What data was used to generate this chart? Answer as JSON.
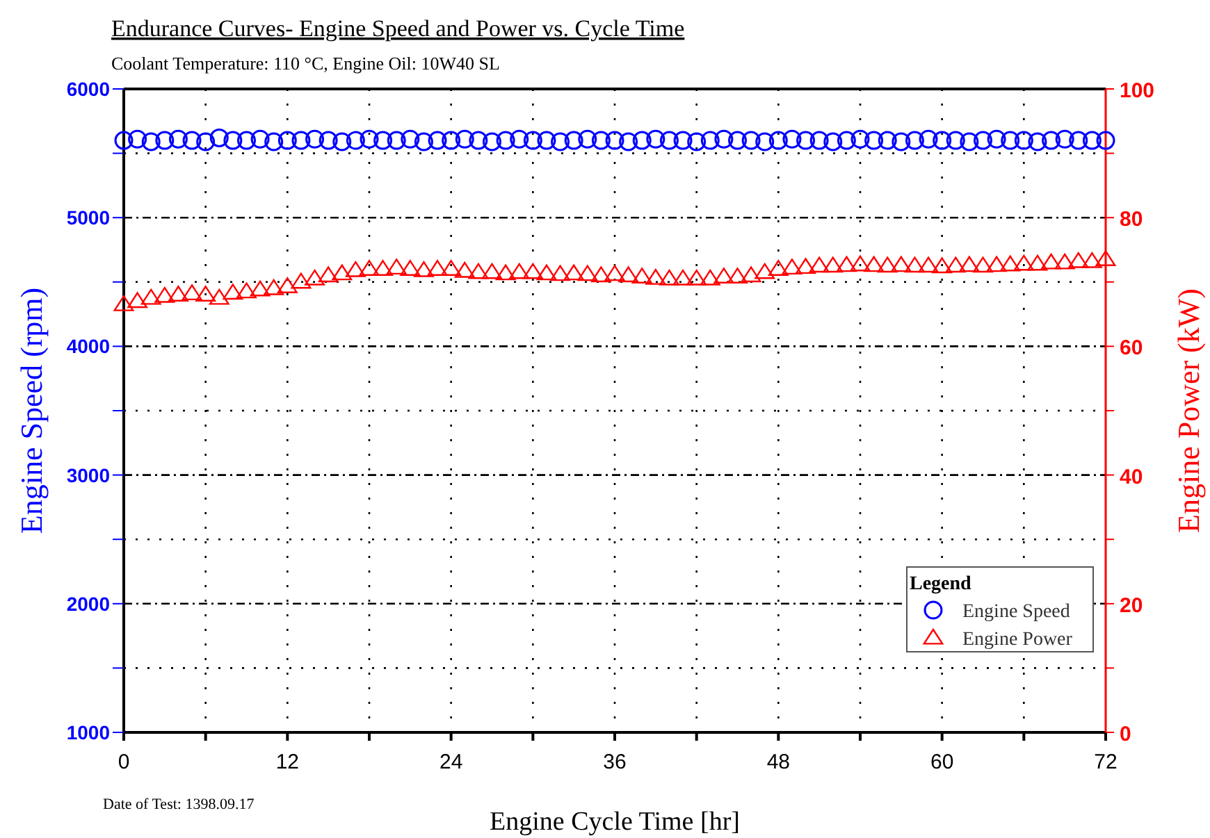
{
  "chart_data": {
    "type": "scatter",
    "title": "Endurance Curves- Engine Speed and Power vs. Cycle Time",
    "subtitle": "Coolant Temperature: 110 °C, Engine Oil: 10W40 SL",
    "xlabel": "Engine Cycle Time [hr]",
    "ylabel": "Engine Speed (rpm)",
    "y2label": "Engine Power (kW)",
    "legend_title": "Legend",
    "annotations": [
      "Date of Test: 1398.09.17"
    ],
    "x": [
      0,
      1,
      2,
      3,
      4,
      5,
      6,
      7,
      8,
      9,
      10,
      11,
      12,
      13,
      14,
      15,
      16,
      17,
      18,
      19,
      20,
      21,
      22,
      23,
      24,
      25,
      26,
      27,
      28,
      29,
      30,
      31,
      32,
      33,
      34,
      35,
      36,
      37,
      38,
      39,
      40,
      41,
      42,
      43,
      44,
      45,
      46,
      47,
      48,
      49,
      50,
      51,
      52,
      53,
      54,
      55,
      56,
      57,
      58,
      59,
      60,
      61,
      62,
      63,
      64,
      65,
      66,
      67,
      68,
      69,
      70,
      71,
      72
    ],
    "series": [
      {
        "name": "Engine Speed",
        "color": "#0000ff",
        "marker": "circle",
        "values": [
          5600,
          5610,
          5590,
          5600,
          5610,
          5600,
          5590,
          5620,
          5600,
          5600,
          5610,
          5590,
          5600,
          5600,
          5610,
          5600,
          5590,
          5600,
          5610,
          5600,
          5600,
          5610,
          5590,
          5600,
          5600,
          5610,
          5600,
          5590,
          5600,
          5610,
          5600,
          5600,
          5590,
          5600,
          5610,
          5600,
          5600,
          5590,
          5600,
          5610,
          5600,
          5600,
          5590,
          5600,
          5610,
          5600,
          5600,
          5590,
          5600,
          5610,
          5600,
          5600,
          5590,
          5600,
          5610,
          5600,
          5600,
          5590,
          5600,
          5610,
          5600,
          5600,
          5590,
          5600,
          5610,
          5600,
          5600,
          5590,
          5600,
          5610,
          5600,
          5600,
          5600
        ]
      },
      {
        "name": "Engine Power",
        "color": "#ff0000",
        "marker": "triangle",
        "axis": "y2",
        "values": [
          66.5,
          67,
          67.5,
          67.8,
          68,
          68.2,
          68,
          67.5,
          68.3,
          68.5,
          68.8,
          69,
          69.3,
          70,
          70.5,
          71,
          71.3,
          71.8,
          72,
          72,
          72.2,
          72,
          71.8,
          72,
          72,
          71.7,
          71.5,
          71.5,
          71.3,
          71.5,
          71.5,
          71.3,
          71.2,
          71.3,
          71.2,
          71,
          71.2,
          71,
          70.8,
          70.6,
          70.5,
          70.5,
          70.5,
          70.5,
          70.8,
          70.8,
          71,
          71.5,
          72,
          72.2,
          72.3,
          72.5,
          72.5,
          72.6,
          72.7,
          72.6,
          72.5,
          72.6,
          72.5,
          72.5,
          72.4,
          72.5,
          72.6,
          72.5,
          72.6,
          72.7,
          72.8,
          72.8,
          73,
          73,
          73.2,
          73.2,
          73.5
        ]
      }
    ],
    "xlim": [
      0,
      72
    ],
    "xticks": [
      0,
      {
        "value": 6,
        "label": null
      },
      12,
      {
        "value": 18,
        "label": null
      },
      24,
      {
        "value": 30,
        "label": null
      },
      36,
      {
        "value": 42,
        "label": null
      },
      48,
      {
        "value": 54,
        "label": null
      },
      60,
      {
        "value": 66,
        "label": null
      },
      72
    ],
    "ylim": [
      1000,
      6000
    ],
    "yticks": [
      1000,
      {
        "value": 1500,
        "label": null
      },
      2000,
      {
        "value": 2500,
        "label": null
      },
      3000,
      {
        "value": 3500,
        "label": null
      },
      4000,
      {
        "value": 4500,
        "label": null
      },
      5000,
      {
        "value": 5500,
        "label": null
      },
      6000
    ],
    "y2lim": [
      0,
      100
    ],
    "y2ticks": [
      0,
      {
        "value": 10,
        "label": null
      },
      20,
      {
        "value": 30,
        "label": null
      },
      40,
      {
        "value": 50,
        "label": null
      },
      60,
      {
        "value": 70,
        "label": null
      },
      80,
      {
        "value": 90,
        "label": null
      },
      100
    ],
    "grid": true,
    "legend": "bottom right"
  }
}
